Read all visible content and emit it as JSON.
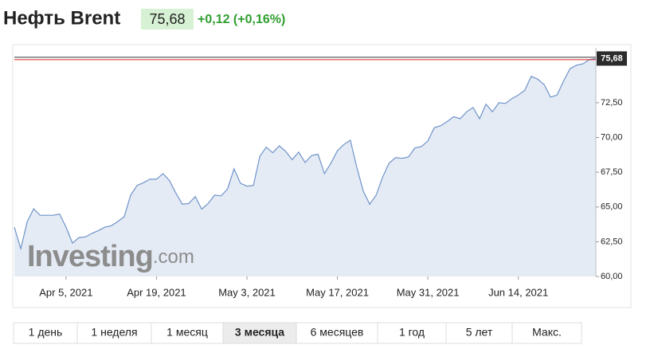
{
  "header": {
    "title": "Нефть Brent",
    "price": "75,68",
    "change": "+0,12 (+0,16%)"
  },
  "chart_data": {
    "type": "area",
    "x": [
      "2021-03-28",
      "2021-03-29",
      "2021-03-30",
      "2021-03-31",
      "2021-04-01",
      "2021-04-02",
      "2021-04-03",
      "2021-04-04",
      "2021-04-05",
      "2021-04-06",
      "2021-04-07",
      "2021-04-08",
      "2021-04-09",
      "2021-04-10",
      "2021-04-11",
      "2021-04-12",
      "2021-04-13",
      "2021-04-14",
      "2021-04-15",
      "2021-04-16",
      "2021-04-17",
      "2021-04-18",
      "2021-04-19",
      "2021-04-20",
      "2021-04-21",
      "2021-04-22",
      "2021-04-23",
      "2021-04-24",
      "2021-04-25",
      "2021-04-26",
      "2021-04-27",
      "2021-04-28",
      "2021-04-29",
      "2021-04-30",
      "2021-05-01",
      "2021-05-02",
      "2021-05-03",
      "2021-05-04",
      "2021-05-05",
      "2021-05-06",
      "2021-05-07",
      "2021-05-08",
      "2021-05-09",
      "2021-05-10",
      "2021-05-11",
      "2021-05-12",
      "2021-05-13",
      "2021-05-14",
      "2021-05-15",
      "2021-05-16",
      "2021-05-17",
      "2021-05-18",
      "2021-05-19",
      "2021-05-20",
      "2021-05-21",
      "2021-05-22",
      "2021-05-23",
      "2021-05-24",
      "2021-05-25",
      "2021-05-26",
      "2021-05-27",
      "2021-05-28",
      "2021-05-29",
      "2021-05-30",
      "2021-05-31",
      "2021-06-01",
      "2021-06-02",
      "2021-06-03",
      "2021-06-04",
      "2021-06-05",
      "2021-06-06",
      "2021-06-07",
      "2021-06-08",
      "2021-06-09",
      "2021-06-10",
      "2021-06-11",
      "2021-06-12",
      "2021-06-13",
      "2021-06-14",
      "2021-06-15",
      "2021-06-16",
      "2021-06-17",
      "2021-06-18",
      "2021-06-19",
      "2021-06-20",
      "2021-06-21",
      "2021-06-22",
      "2021-06-23",
      "2021-06-24",
      "2021-06-25",
      "2021-06-26"
    ],
    "values": [
      63.55,
      62.0,
      63.95,
      64.87,
      64.4,
      64.4,
      64.4,
      64.5,
      63.55,
      62.4,
      62.8,
      62.85,
      63.1,
      63.3,
      63.55,
      63.65,
      63.95,
      64.3,
      65.85,
      66.55,
      66.75,
      67.0,
      67.0,
      67.4,
      66.9,
      66.0,
      65.2,
      65.25,
      65.75,
      64.85,
      65.25,
      65.85,
      65.8,
      66.3,
      67.75,
      66.7,
      66.5,
      66.55,
      68.65,
      69.3,
      68.9,
      69.4,
      69.0,
      68.4,
      68.95,
      68.2,
      68.7,
      68.8,
      67.4,
      68.15,
      69.05,
      69.5,
      69.8,
      67.85,
      66.15,
      65.2,
      65.85,
      67.15,
      68.15,
      68.55,
      68.5,
      68.6,
      69.25,
      69.35,
      69.75,
      70.7,
      70.85,
      71.15,
      71.5,
      71.35,
      71.85,
      72.15,
      71.35,
      72.4,
      71.85,
      72.5,
      72.45,
      72.8,
      73.05,
      73.4,
      74.4,
      74.2,
      73.8,
      72.9,
      73.05,
      74.05,
      74.95,
      75.2,
      75.3,
      75.6,
      75.68
    ],
    "color": "#6f93c8",
    "fill": "#e4ebf5",
    "xlim": [
      "2021-03-28",
      "2021-06-26"
    ],
    "xticks": [
      {
        "value": "2021-04-05",
        "label": "Apr 5, 2021"
      },
      {
        "value": "2021-04-19",
        "label": "Apr 19, 2021"
      },
      {
        "value": "2021-05-03",
        "label": "May 3, 2021"
      },
      {
        "value": "2021-05-17",
        "label": "May 17, 2021"
      },
      {
        "value": "2021-05-31",
        "label": "May 31, 2021"
      },
      {
        "value": "2021-06-14",
        "label": "Jun 14, 2021"
      }
    ],
    "ylim": [
      60,
      76.45
    ],
    "yticks": [
      {
        "value": 60,
        "label": "60,00"
      },
      {
        "value": 62.5,
        "label": "62,50"
      },
      {
        "value": 65,
        "label": "65,00"
      },
      {
        "value": 67.5,
        "label": "67,50"
      },
      {
        "value": 70,
        "label": "70,00"
      },
      {
        "value": 72.5,
        "label": "72,50"
      }
    ],
    "current_price": {
      "value": 75.68,
      "label": "75,68"
    },
    "grid": false
  },
  "watermark": {
    "brand": "Investing",
    "domain": ".com"
  },
  "range_tabs": {
    "items": [
      "1 день",
      "1 неделя",
      "1 месяц",
      "3 месяца",
      "6 месяцев",
      "1 год",
      "5 лет",
      "Макс."
    ],
    "active": 3
  }
}
